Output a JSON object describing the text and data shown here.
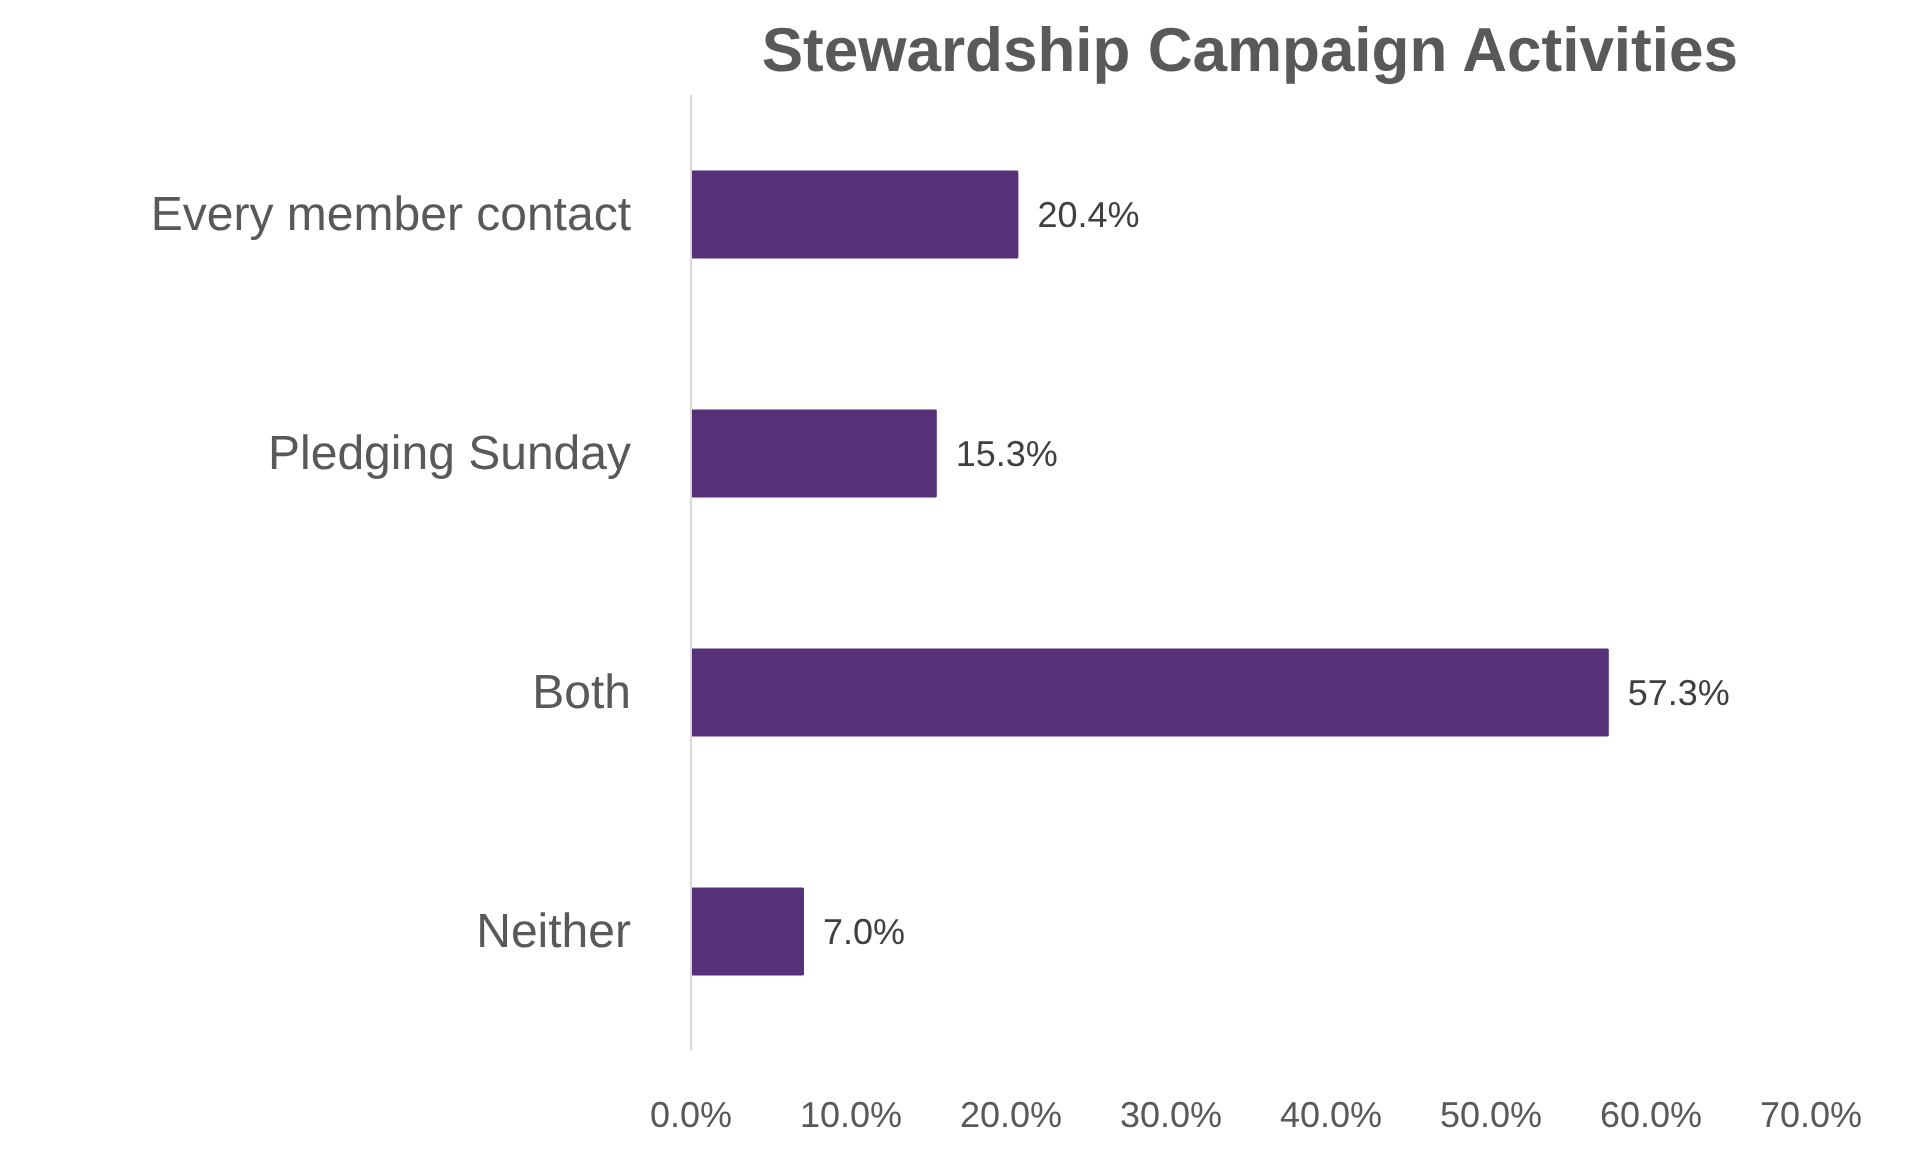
{
  "chart_data": {
    "type": "bar",
    "orientation": "horizontal",
    "title": "Stewardship Campaign Activities",
    "categories": [
      "Every member contact",
      "Pledging Sunday",
      "Both",
      "Neither"
    ],
    "values": [
      20.4,
      15.3,
      57.3,
      7.0
    ],
    "value_labels": [
      "20.4%",
      "15.3%",
      "57.3%",
      "7.0%"
    ],
    "color": "#56317a",
    "xlim": [
      0,
      70
    ],
    "xticks": [
      {
        "value": 0,
        "label": "0.0%"
      },
      {
        "value": 10,
        "label": "10.0%"
      },
      {
        "value": 20,
        "label": "20.0%"
      },
      {
        "value": 30,
        "label": "30.0%"
      },
      {
        "value": 40,
        "label": "40.0%"
      },
      {
        "value": 50,
        "label": "50.0%"
      },
      {
        "value": 60,
        "label": "60.0%"
      },
      {
        "value": 70,
        "label": "70.0%"
      }
    ],
    "grid": false
  }
}
